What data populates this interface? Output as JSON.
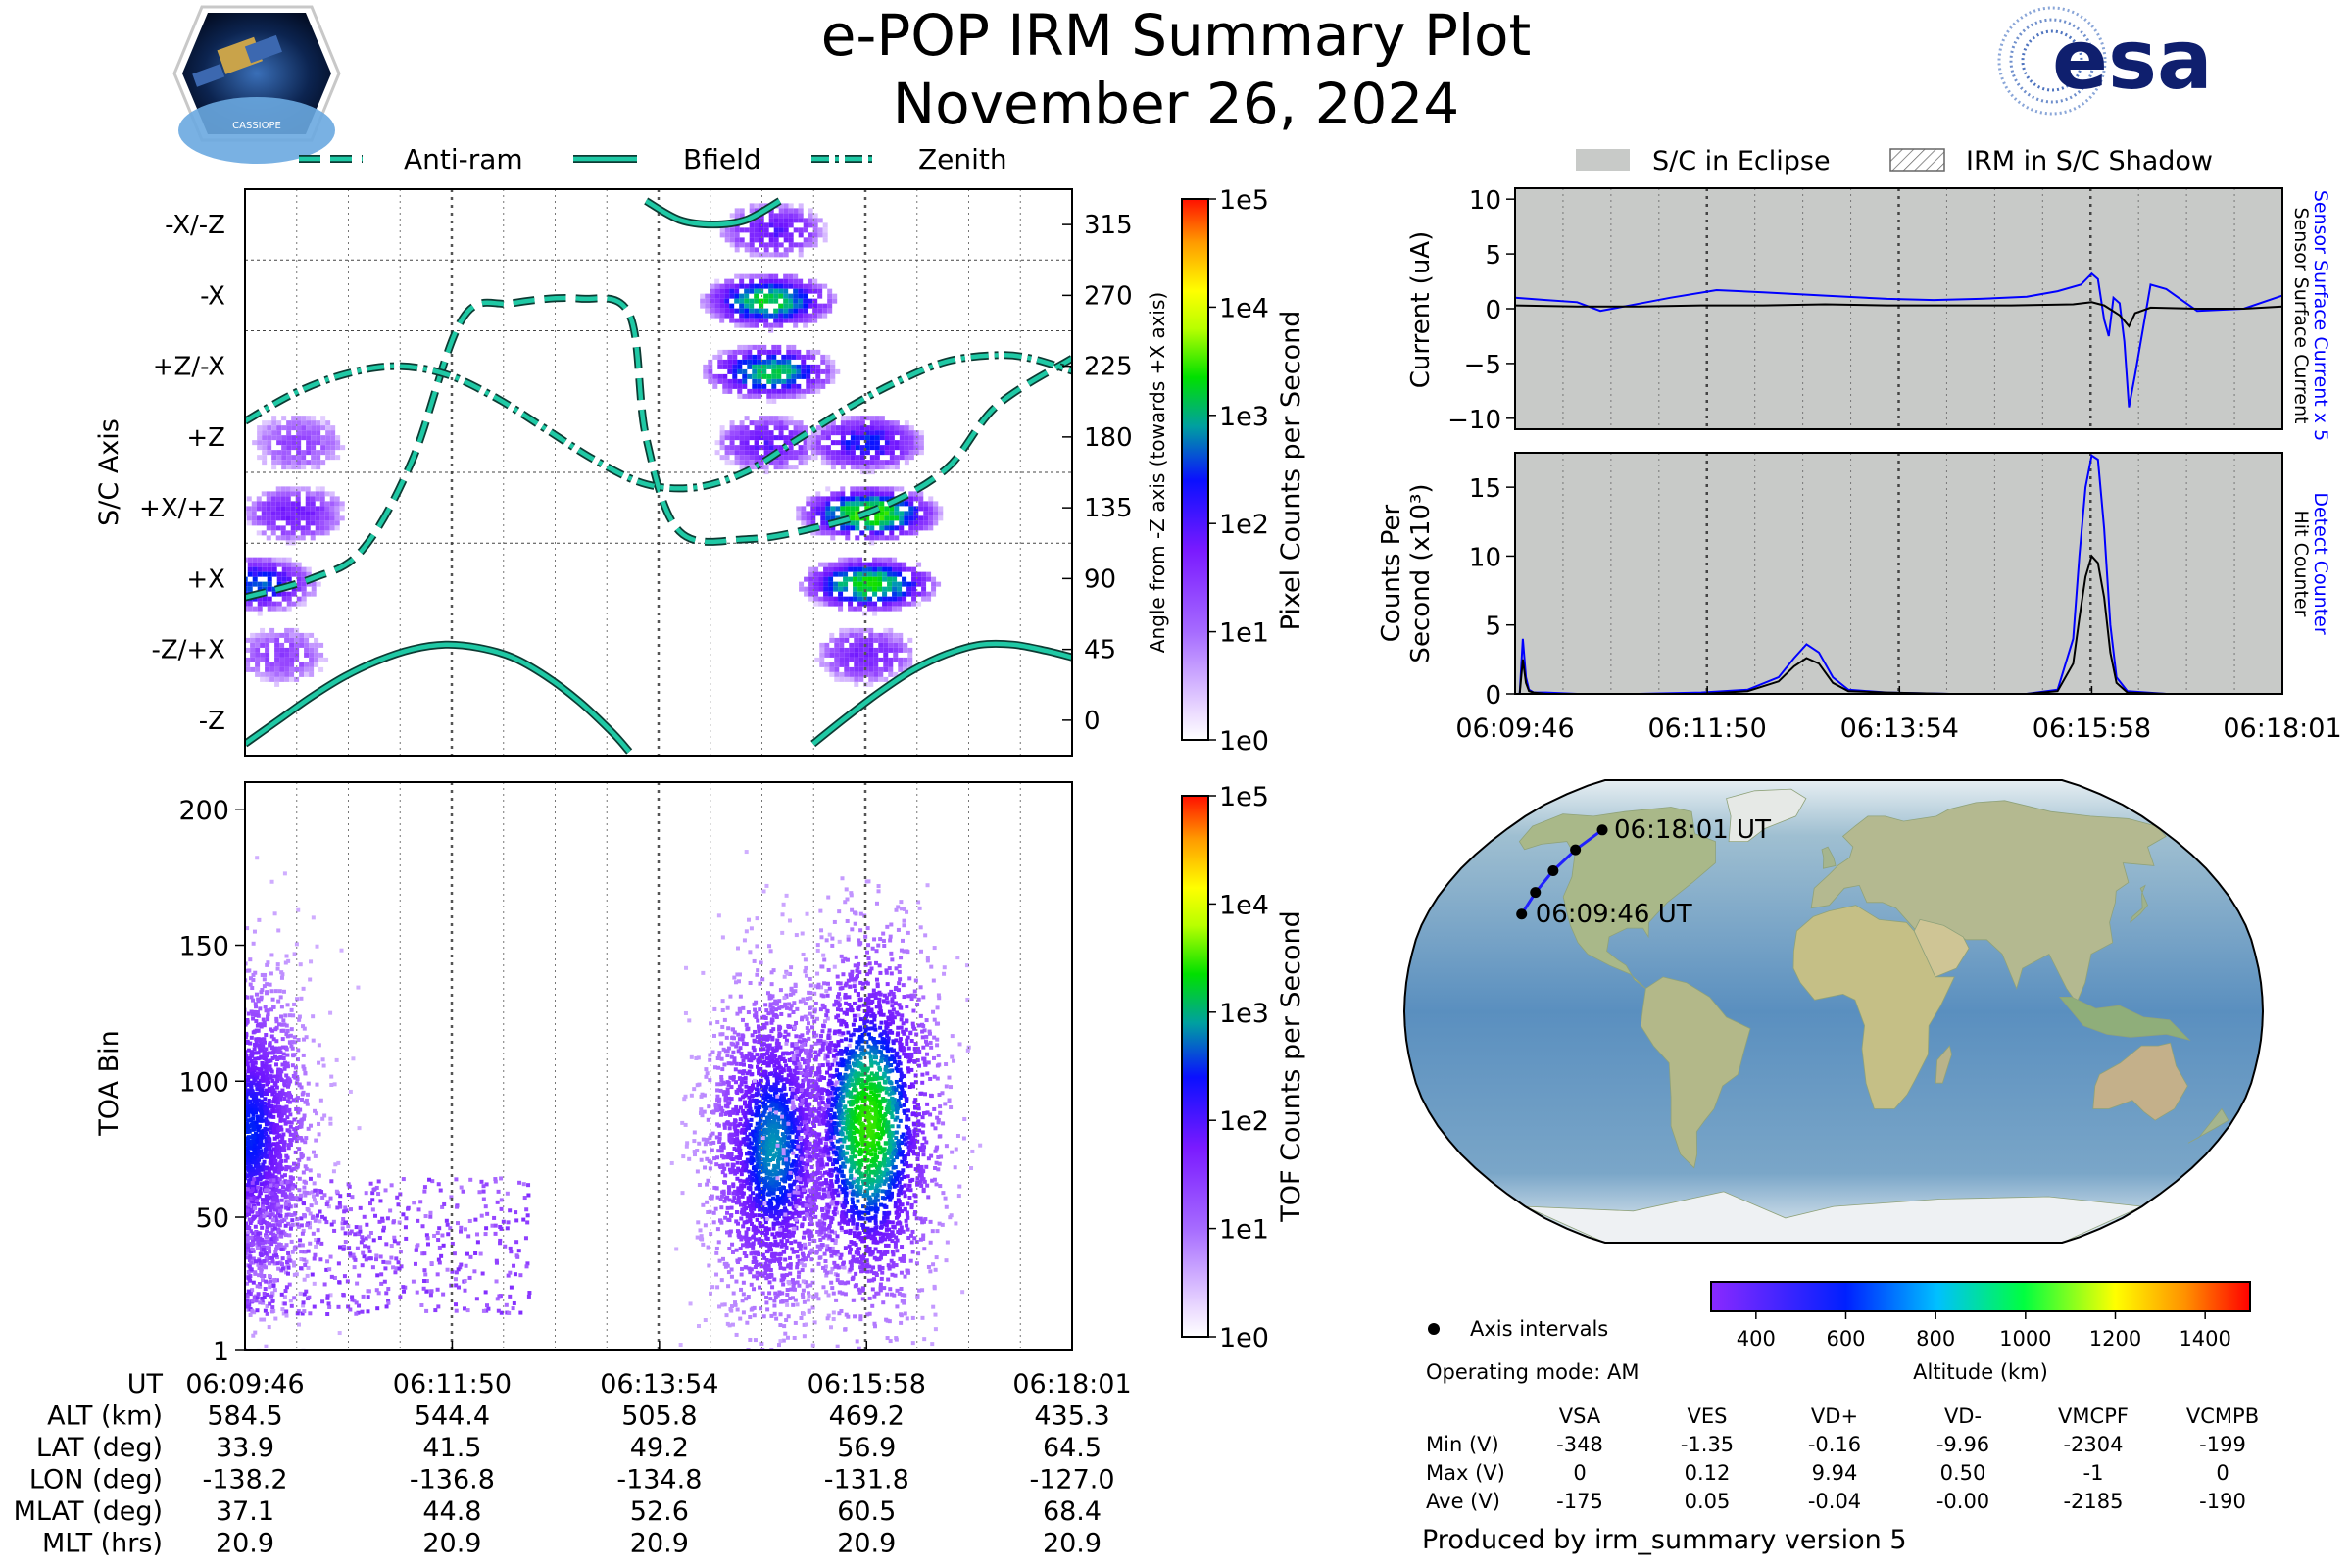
{
  "header": {
    "title_line1": "e-POP IRM Summary Plot",
    "title_line2": "November 26, 2024",
    "left_logo_text": "CASSIOPE",
    "right_logo_text": "esa"
  },
  "legends": {
    "orientation": {
      "antiram": "Anti-ram",
      "bfield": "Bfield",
      "zenith": "Zenith"
    },
    "eclipse": {
      "eclipse": "S/C in Eclipse",
      "shadow": "IRM in S/C Shadow"
    }
  },
  "colors": {
    "orientation_line": "#1fc9a5",
    "detect": "#0000ff",
    "hit": "#000000",
    "eclipse_fill": "#c8cac8"
  },
  "chart_data": [
    {
      "id": "pixel",
      "type": "heatmap",
      "ylabel": "S/C Axis",
      "y_categories": [
        "-X/-Z",
        "-X",
        "+Z/-X",
        "+Z",
        "+X/+Z",
        "+X",
        "-Z/+X",
        "-Z"
      ],
      "right_ylabel": "Angle from -Z axis (towards +X axis)",
      "right_ticks": [
        "315",
        "270",
        "225",
        "180",
        "135",
        "90",
        "45",
        "0"
      ],
      "colorbar_label": "Pixel Counts per Second",
      "colorbar_ticks": [
        "1e0",
        "1e1",
        "1e2",
        "1e3",
        "1e4",
        "1e5"
      ],
      "x_time_seconds": [
        0,
        495
      ],
      "blobs": [
        {
          "x": 315,
          "row": "-X/-Z",
          "peak": 1.6
        },
        {
          "x": 312,
          "row": "-X",
          "peak": 2.7
        },
        {
          "x": 313,
          "row": "+Z/-X",
          "peak": 2.6
        },
        {
          "x": 312,
          "row": "+Z",
          "peak": 1.6
        },
        {
          "x": 372,
          "row": "+X/+Z",
          "peak": 3.0
        },
        {
          "x": 370,
          "row": "+Z",
          "peak": 2.0
        },
        {
          "x": 372,
          "row": "+X",
          "peak": 2.8
        },
        {
          "x": 370,
          "row": "-Z/+X",
          "peak": 1.4
        },
        {
          "x": 28,
          "row": "+X/+Z",
          "peak": 1.5
        },
        {
          "x": 5,
          "row": "+X",
          "peak": 2.2
        },
        {
          "x": 30,
          "row": "+Z",
          "peak": 1.0
        },
        {
          "x": 20,
          "row": "-Z/+X",
          "peak": 1.0
        }
      ],
      "series": [
        {
          "name": "Anti-ram",
          "style": "dashed",
          "x": [
            0,
            40,
            70,
            100,
            130,
            160,
            200,
            230,
            240,
            260,
            300,
            340,
            380,
            420,
            450,
            495
          ],
          "y": [
            78,
            90,
            108,
            165,
            255,
            265,
            268,
            258,
            180,
            120,
            115,
            122,
            135,
            160,
            200,
            230
          ]
        },
        {
          "name": "Bfield",
          "style": "solid",
          "x": [
            0,
            20,
            40,
            60,
            80,
            100,
            120,
            140,
            160,
            180,
            200,
            220,
            230,
            240,
            260,
            280,
            300,
            320,
            340,
            360,
            380,
            400,
            420,
            440,
            460,
            480,
            495
          ],
          "y": [
            -15,
            0,
            15,
            28,
            38,
            45,
            48,
            46,
            40,
            28,
            12,
            -8,
            -20,
            330,
            318,
            315,
            318,
            330,
            -15,
            2,
            18,
            32,
            42,
            48,
            48,
            44,
            40
          ]
        },
        {
          "name": "Zenith",
          "style": "dashdot",
          "x": [
            0,
            30,
            60,
            90,
            120,
            150,
            180,
            210,
            240,
            270,
            300,
            330,
            360,
            390,
            420,
            450,
            470,
            495
          ],
          "y": [
            190,
            208,
            220,
            225,
            220,
            205,
            185,
            165,
            150,
            148,
            158,
            178,
            198,
            215,
            228,
            232,
            230,
            222
          ]
        }
      ]
    },
    {
      "id": "tof",
      "type": "heatmap",
      "ylabel": "TOA Bin",
      "yticks": [
        "1",
        "50",
        "100",
        "150",
        "200"
      ],
      "ylim": [
        1,
        210
      ],
      "colorbar_label": "TOF Counts per Second",
      "colorbar_ticks": [
        "1e0",
        "1e1",
        "1e2",
        "1e3",
        "1e4",
        "1e5"
      ],
      "blobs": [
        {
          "x": 2,
          "y": 82,
          "peak": 1.8
        },
        {
          "x": 315,
          "y": 76,
          "peak": 2.1
        },
        {
          "x": 372,
          "y": 85,
          "peak": 2.7
        }
      ]
    },
    {
      "id": "current",
      "type": "line",
      "ylabel": "Current (uA)",
      "yticks": [
        "10",
        "5",
        "0",
        "−5",
        "−10"
      ],
      "ylim": [
        -11,
        11
      ],
      "right_labels": [
        "Sensor Surface Current x 5",
        "Sensor Surface Current"
      ],
      "series": [
        {
          "name": "Sensor Surface Current x 5",
          "x": [
            0,
            20,
            40,
            55,
            70,
            100,
            130,
            160,
            200,
            240,
            270,
            300,
            330,
            350,
            365,
            372,
            376,
            380,
            383,
            386,
            390,
            393,
            396,
            400,
            410,
            420,
            440,
            470,
            495
          ],
          "y": [
            1,
            0.8,
            0.6,
            -0.2,
            0.2,
            1.0,
            1.7,
            1.5,
            1.2,
            0.9,
            0.8,
            0.9,
            1.1,
            1.6,
            2.2,
            3.2,
            2.7,
            -1,
            -2.5,
            1.0,
            0.5,
            -3,
            -9,
            -6,
            2.2,
            1.8,
            -0.2,
            0.0,
            1.2
          ]
        },
        {
          "name": "Sensor Surface Current",
          "x": [
            0,
            40,
            80,
            120,
            160,
            200,
            240,
            280,
            320,
            360,
            372,
            380,
            390,
            396,
            400,
            410,
            440,
            470,
            495
          ],
          "y": [
            0.3,
            0.2,
            0.2,
            0.3,
            0.3,
            0.4,
            0.3,
            0.3,
            0.3,
            0.4,
            0.6,
            0.3,
            -0.6,
            -1.6,
            -0.4,
            0.1,
            0.0,
            0.0,
            0.2
          ]
        }
      ]
    },
    {
      "id": "counts",
      "type": "line",
      "ylabel_line1": "Counts Per",
      "ylabel_line2": "Second (x10³)",
      "yticks": [
        "15",
        "10",
        "5",
        "0"
      ],
      "ylim": [
        0,
        17.5
      ],
      "right_labels": [
        "Detect Counter",
        "Hit Counter"
      ],
      "series": [
        {
          "name": "Detect Counter",
          "x": [
            0,
            3,
            5,
            7,
            9,
            12,
            20,
            40,
            80,
            120,
            150,
            170,
            180,
            188,
            196,
            205,
            215,
            240,
            280,
            330,
            350,
            360,
            364,
            368,
            372,
            376,
            380,
            384,
            388,
            395,
            420,
            470,
            495
          ],
          "y": [
            0,
            0,
            4,
            1.2,
            0.3,
            0.1,
            0.1,
            0,
            0,
            0.1,
            0.3,
            1.2,
            2.6,
            3.6,
            3.0,
            1.2,
            0.3,
            0.1,
            0,
            0,
            0.3,
            4,
            10,
            15,
            17.3,
            17,
            12,
            5,
            1.2,
            0.2,
            0,
            0,
            0
          ]
        },
        {
          "name": "Hit Counter",
          "x": [
            0,
            3,
            5,
            7,
            9,
            12,
            20,
            40,
            80,
            120,
            150,
            170,
            180,
            188,
            196,
            205,
            215,
            240,
            280,
            330,
            350,
            360,
            364,
            368,
            372,
            376,
            380,
            384,
            388,
            395,
            420,
            470,
            495
          ],
          "y": [
            0,
            0,
            2.5,
            0.8,
            0.2,
            0.1,
            0,
            0,
            0,
            0,
            0.2,
            0.9,
            2.0,
            2.6,
            2.2,
            0.8,
            0.2,
            0.1,
            0,
            0,
            0.2,
            2.2,
            5.5,
            8.5,
            10,
            9.5,
            7,
            3,
            0.8,
            0.1,
            0,
            0,
            0
          ]
        }
      ]
    }
  ],
  "time_axis": {
    "ticks": [
      "06:09:46",
      "06:11:50",
      "06:13:54",
      "06:15:58",
      "06:18:01"
    ],
    "tick_seconds": [
      0,
      124,
      248,
      372,
      495
    ]
  },
  "ephemeris": {
    "labels": [
      "UT",
      "ALT (km)",
      "LAT (deg)",
      "LON (deg)",
      "MLAT (deg)",
      "MLT (hrs)"
    ],
    "values": [
      [
        "06:09:46",
        "06:11:50",
        "06:13:54",
        "06:15:58",
        "06:18:01"
      ],
      [
        "584.5",
        "544.4",
        "505.8",
        "469.2",
        "435.3"
      ],
      [
        "33.9",
        "41.5",
        "49.2",
        "56.9",
        "64.5"
      ],
      [
        "-138.2",
        "-136.8",
        "-134.8",
        "-131.8",
        "-127.0"
      ],
      [
        "37.1",
        "44.8",
        "52.6",
        "60.5",
        "68.4"
      ],
      [
        "20.9",
        "20.9",
        "20.9",
        "20.9",
        "20.9"
      ]
    ]
  },
  "map": {
    "start_label": "06:09:46 UT",
    "end_label": "06:18:01 UT",
    "track_lat": [
      33.9,
      41.5,
      49.2,
      56.9,
      64.5
    ],
    "track_lon": [
      -138.2,
      -136.8,
      -134.8,
      -131.8,
      -127.0
    ],
    "altitude_colorbar": {
      "label": "Altitude (km)",
      "ticks": [
        "400",
        "600",
        "800",
        "1000",
        "1200",
        "1400"
      ],
      "range": [
        300,
        1500
      ]
    },
    "axis_intervals_label": "Axis intervals",
    "operating_mode": "Operating mode: AM"
  },
  "voltage_table": {
    "headers": [
      "VSA",
      "VES",
      "VD+",
      "VD-",
      "VMCPF",
      "VCMPB"
    ],
    "rows": [
      {
        "label": "Min (V)",
        "values": [
          "-348",
          "-1.35",
          "-0.16",
          "-9.96",
          "-2304",
          "-199"
        ]
      },
      {
        "label": "Max (V)",
        "values": [
          "0",
          "0.12",
          "9.94",
          "0.50",
          "-1",
          "0"
        ]
      },
      {
        "label": "Ave (V)",
        "values": [
          "-175",
          "0.05",
          "-0.04",
          "-0.00",
          "-2185",
          "-190"
        ]
      }
    ]
  },
  "footer": "Produced by irm_summary version 5"
}
